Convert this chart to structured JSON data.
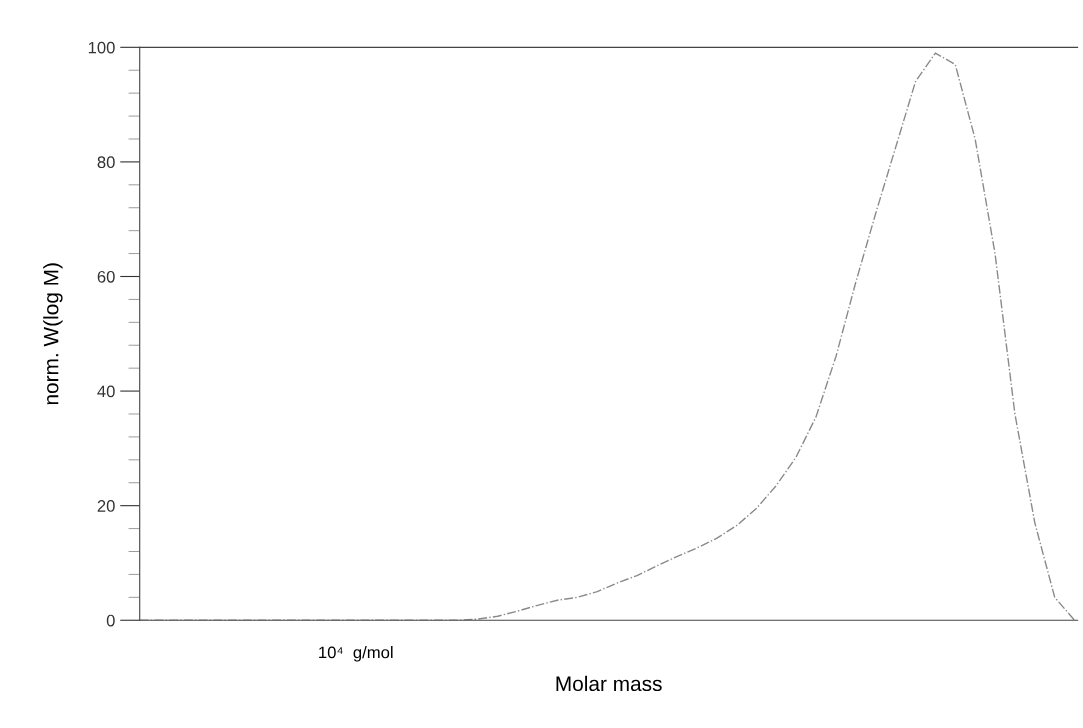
{
  "chart_data": {
    "type": "line",
    "xlabel": "Molar mass",
    "ylabel": "norm. W(log M)",
    "categories": [
      null,
      null,
      null,
      null,
      null,
      null,
      null,
      null,
      null,
      null,
      null,
      null,
      null,
      null,
      null,
      null,
      null,
      null,
      null,
      null,
      null,
      null,
      null,
      null,
      null,
      null,
      null,
      null,
      null,
      null,
      null,
      null,
      null,
      null,
      null,
      null,
      null,
      null,
      null,
      null,
      null,
      null,
      null,
      null,
      null,
      null,
      null,
      null
    ],
    "series": [
      {
        "color": "#8a8a8a",
        "values": [
          0,
          0,
          0,
          0,
          0,
          0,
          0,
          0,
          0,
          0,
          0,
          0,
          0,
          0,
          0,
          0,
          0,
          0.2,
          0.7,
          1.6,
          2.6,
          3.5,
          4.0,
          5.0,
          6.5,
          7.8,
          9.5,
          11.1,
          12.6,
          14.3,
          16.5,
          19.5,
          23.5,
          28.5,
          35.5,
          46,
          59,
          71,
          82.5,
          94,
          99,
          97,
          84,
          64,
          36,
          17,
          4,
          0
        ]
      }
    ],
    "ylim": [
      0,
      100
    ],
    "yticks": [
      0,
      20,
      40,
      60,
      80,
      100
    ],
    "tick_labels": "y",
    "grid": false,
    "legend": false,
    "marker": "none",
    "line_style": "dashdot",
    "annotations": [
      "10⁴  g/mol"
    ]
  }
}
